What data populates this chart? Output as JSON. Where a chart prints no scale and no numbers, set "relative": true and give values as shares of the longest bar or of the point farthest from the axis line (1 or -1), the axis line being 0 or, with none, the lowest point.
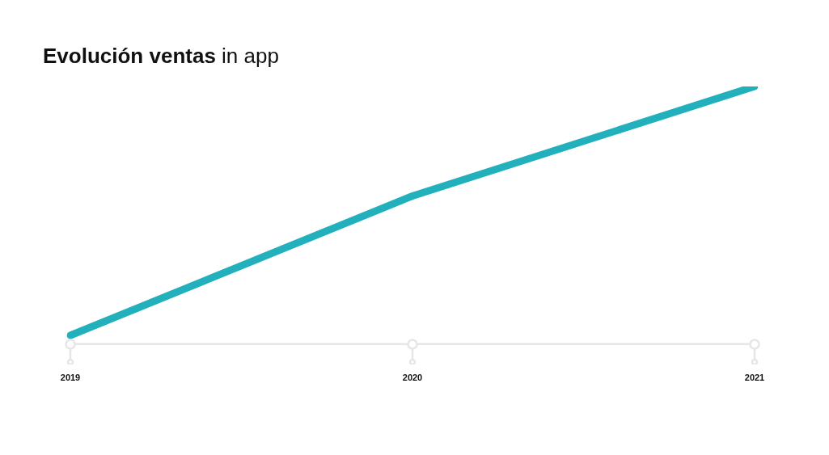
{
  "chart_data": {
    "type": "line",
    "title": "Evolución ventas in app",
    "categories": [
      "2019",
      "2020",
      "2021"
    ],
    "relative": true,
    "series": [
      {
        "color": "#22b0bd",
        "values": [
          0.034,
          0.575,
          1
        ]
      }
    ],
    "marker": "none",
    "line_style": "solid",
    "grid": false,
    "legend": false,
    "tick_labels": "x"
  }
}
